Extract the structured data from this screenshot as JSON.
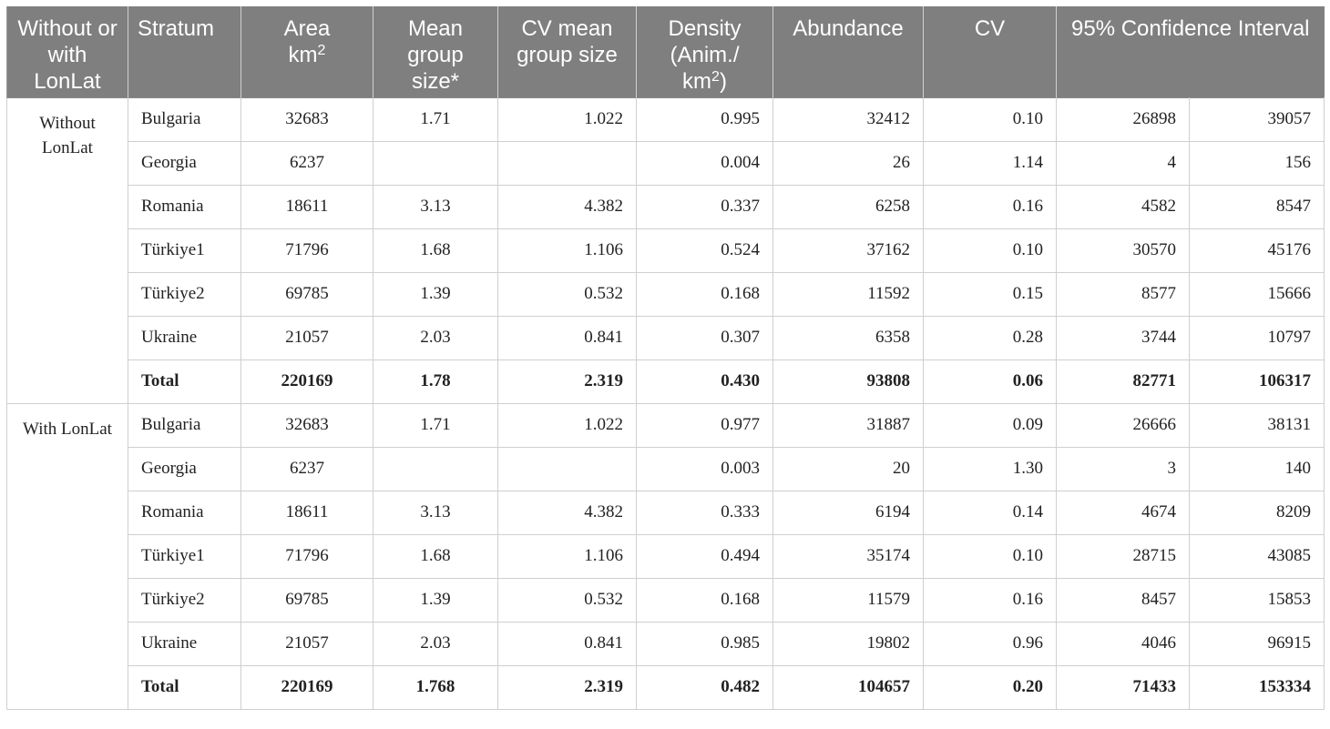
{
  "headers": {
    "group": "Without or with LonLat",
    "stratum": "Stratum",
    "area": "Area",
    "area_unit": "km",
    "area_exp": "2",
    "mean_group_size": "Mean group size*",
    "cv_mean_group_size": "CV mean group size",
    "density": "Density (Anim./",
    "density_unit": "km",
    "density_exp": "2",
    "density_close": ")",
    "abundance": "Abundance",
    "cv": "CV",
    "ci": "95% Confidence Interval"
  },
  "groups": [
    {
      "label": "Without LonLat",
      "rows": [
        {
          "stratum": "Bulgaria",
          "area": "32683",
          "mean": "1.71",
          "cvmean": "1.022",
          "density": "0.995",
          "abundance": "32412",
          "cv": "0.10",
          "ci_low": "26898",
          "ci_high": "39057"
        },
        {
          "stratum": "Georgia",
          "area": "6237",
          "mean": "",
          "cvmean": "",
          "density": "0.004",
          "abundance": "26",
          "cv": "1.14",
          "ci_low": "4",
          "ci_high": "156"
        },
        {
          "stratum": "Romania",
          "area": "18611",
          "mean": "3.13",
          "cvmean": "4.382",
          "density": "0.337",
          "abundance": "6258",
          "cv": "0.16",
          "ci_low": "4582",
          "ci_high": "8547"
        },
        {
          "stratum": "Türkiye1",
          "area": "71796",
          "mean": "1.68",
          "cvmean": "1.106",
          "density": "0.524",
          "abundance": "37162",
          "cv": "0.10",
          "ci_low": "30570",
          "ci_high": "45176"
        },
        {
          "stratum": "Türkiye2",
          "area": "69785",
          "mean": "1.39",
          "cvmean": "0.532",
          "density": "0.168",
          "abundance": "11592",
          "cv": "0.15",
          "ci_low": "8577",
          "ci_high": "15666"
        },
        {
          "stratum": "Ukraine",
          "area": "21057",
          "mean": "2.03",
          "cvmean": "0.841",
          "density": "0.307",
          "abundance": "6358",
          "cv": "0.28",
          "ci_low": "3744",
          "ci_high": "10797"
        },
        {
          "stratum": "Total",
          "area": "220169",
          "mean": "1.78",
          "cvmean": "2.319",
          "density": "0.430",
          "abundance": "93808",
          "cv": "0.06",
          "ci_low": "82771",
          "ci_high": "106317"
        }
      ]
    },
    {
      "label": "With LonLat",
      "rows": [
        {
          "stratum": "Bulgaria",
          "area": "32683",
          "mean": "1.71",
          "cvmean": "1.022",
          "density": "0.977",
          "abundance": "31887",
          "cv": "0.09",
          "ci_low": "26666",
          "ci_high": "38131"
        },
        {
          "stratum": "Georgia",
          "area": "6237",
          "mean": "",
          "cvmean": "",
          "density": "0.003",
          "abundance": "20",
          "cv": "1.30",
          "ci_low": "3",
          "ci_high": "140"
        },
        {
          "stratum": "Romania",
          "area": "18611",
          "mean": "3.13",
          "cvmean": "4.382",
          "density": "0.333",
          "abundance": "6194",
          "cv": "0.14",
          "ci_low": "4674",
          "ci_high": "8209"
        },
        {
          "stratum": "Türkiye1",
          "area": "71796",
          "mean": "1.68",
          "cvmean": "1.106",
          "density": "0.494",
          "abundance": "35174",
          "cv": "0.10",
          "ci_low": "28715",
          "ci_high": "43085"
        },
        {
          "stratum": "Türkiye2",
          "area": "69785",
          "mean": "1.39",
          "cvmean": "0.532",
          "density": "0.168",
          "abundance": "11579",
          "cv": "0.16",
          "ci_low": "8457",
          "ci_high": "15853"
        },
        {
          "stratum": "Ukraine",
          "area": "21057",
          "mean": "2.03",
          "cvmean": "0.841",
          "density": "0.985",
          "abundance": "19802",
          "cv": "0.96",
          "ci_low": "4046",
          "ci_high": "96915"
        },
        {
          "stratum": "Total",
          "area": "220169",
          "mean": "1.768",
          "cvmean": "2.319",
          "density": "0.482",
          "abundance": "104657",
          "cv": "0.20",
          "ci_low": "71433",
          "ci_high": "153334"
        }
      ]
    }
  ]
}
